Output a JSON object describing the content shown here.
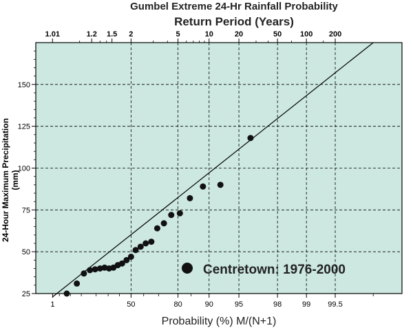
{
  "chart_data": {
    "type": "scatter",
    "title": "Gumbel Extreme 24-Hr Rainfall Probability",
    "subtitle": "Return Period (Years)",
    "xlabel": "Probability (%) M/(N+1)",
    "ylabel_line1": "24-Hour Maximum Precipitation",
    "ylabel_line2": "(mm)",
    "ylim": [
      25,
      175
    ],
    "y_ticks": [
      25,
      50,
      75,
      100,
      125,
      150
    ],
    "x_scale": "gumbel",
    "xlim_probability": [
      0.1,
      99.9
    ],
    "x_ticks_probability": [
      1,
      50,
      80,
      90,
      95,
      98,
      99,
      99.5
    ],
    "x_tick_labels": [
      "1",
      "50",
      "80",
      "90",
      "95",
      "98",
      "99",
      "99.5"
    ],
    "top_axis_return_period": [
      1.01,
      1.2,
      1.5,
      2,
      5,
      10,
      20,
      50,
      100,
      200
    ],
    "top_axis_labels": [
      "1.01",
      "1.2",
      "1.5",
      "2",
      "5",
      "10",
      "20",
      "50",
      "100",
      "200"
    ],
    "grid": true,
    "background_color": "#cce8e0",
    "marker_color": "#111111",
    "series": [
      {
        "name": "Centretown: 1976-2000",
        "x": [
          3.8,
          7.7,
          11.5,
          15.4,
          19.2,
          23.1,
          26.9,
          30.8,
          34.6,
          38.5,
          42.3,
          46.2,
          50.0,
          53.8,
          57.7,
          61.5,
          65.4,
          69.2,
          73.1,
          76.9,
          80.8,
          84.6,
          88.5,
          92.3,
          96.2
        ],
        "y": [
          25,
          31,
          37,
          39,
          39.5,
          40,
          40.5,
          40,
          40.5,
          42,
          43,
          45,
          47,
          51,
          53,
          55,
          56,
          64,
          67,
          72,
          73,
          82,
          89,
          90,
          118
        ]
      }
    ],
    "fit_line": {
      "x": [
        1,
        99.8
      ],
      "y": [
        23,
        175
      ]
    },
    "legend_position": "bottom-right",
    "legend_label": "Centretown: 1976-2000"
  }
}
